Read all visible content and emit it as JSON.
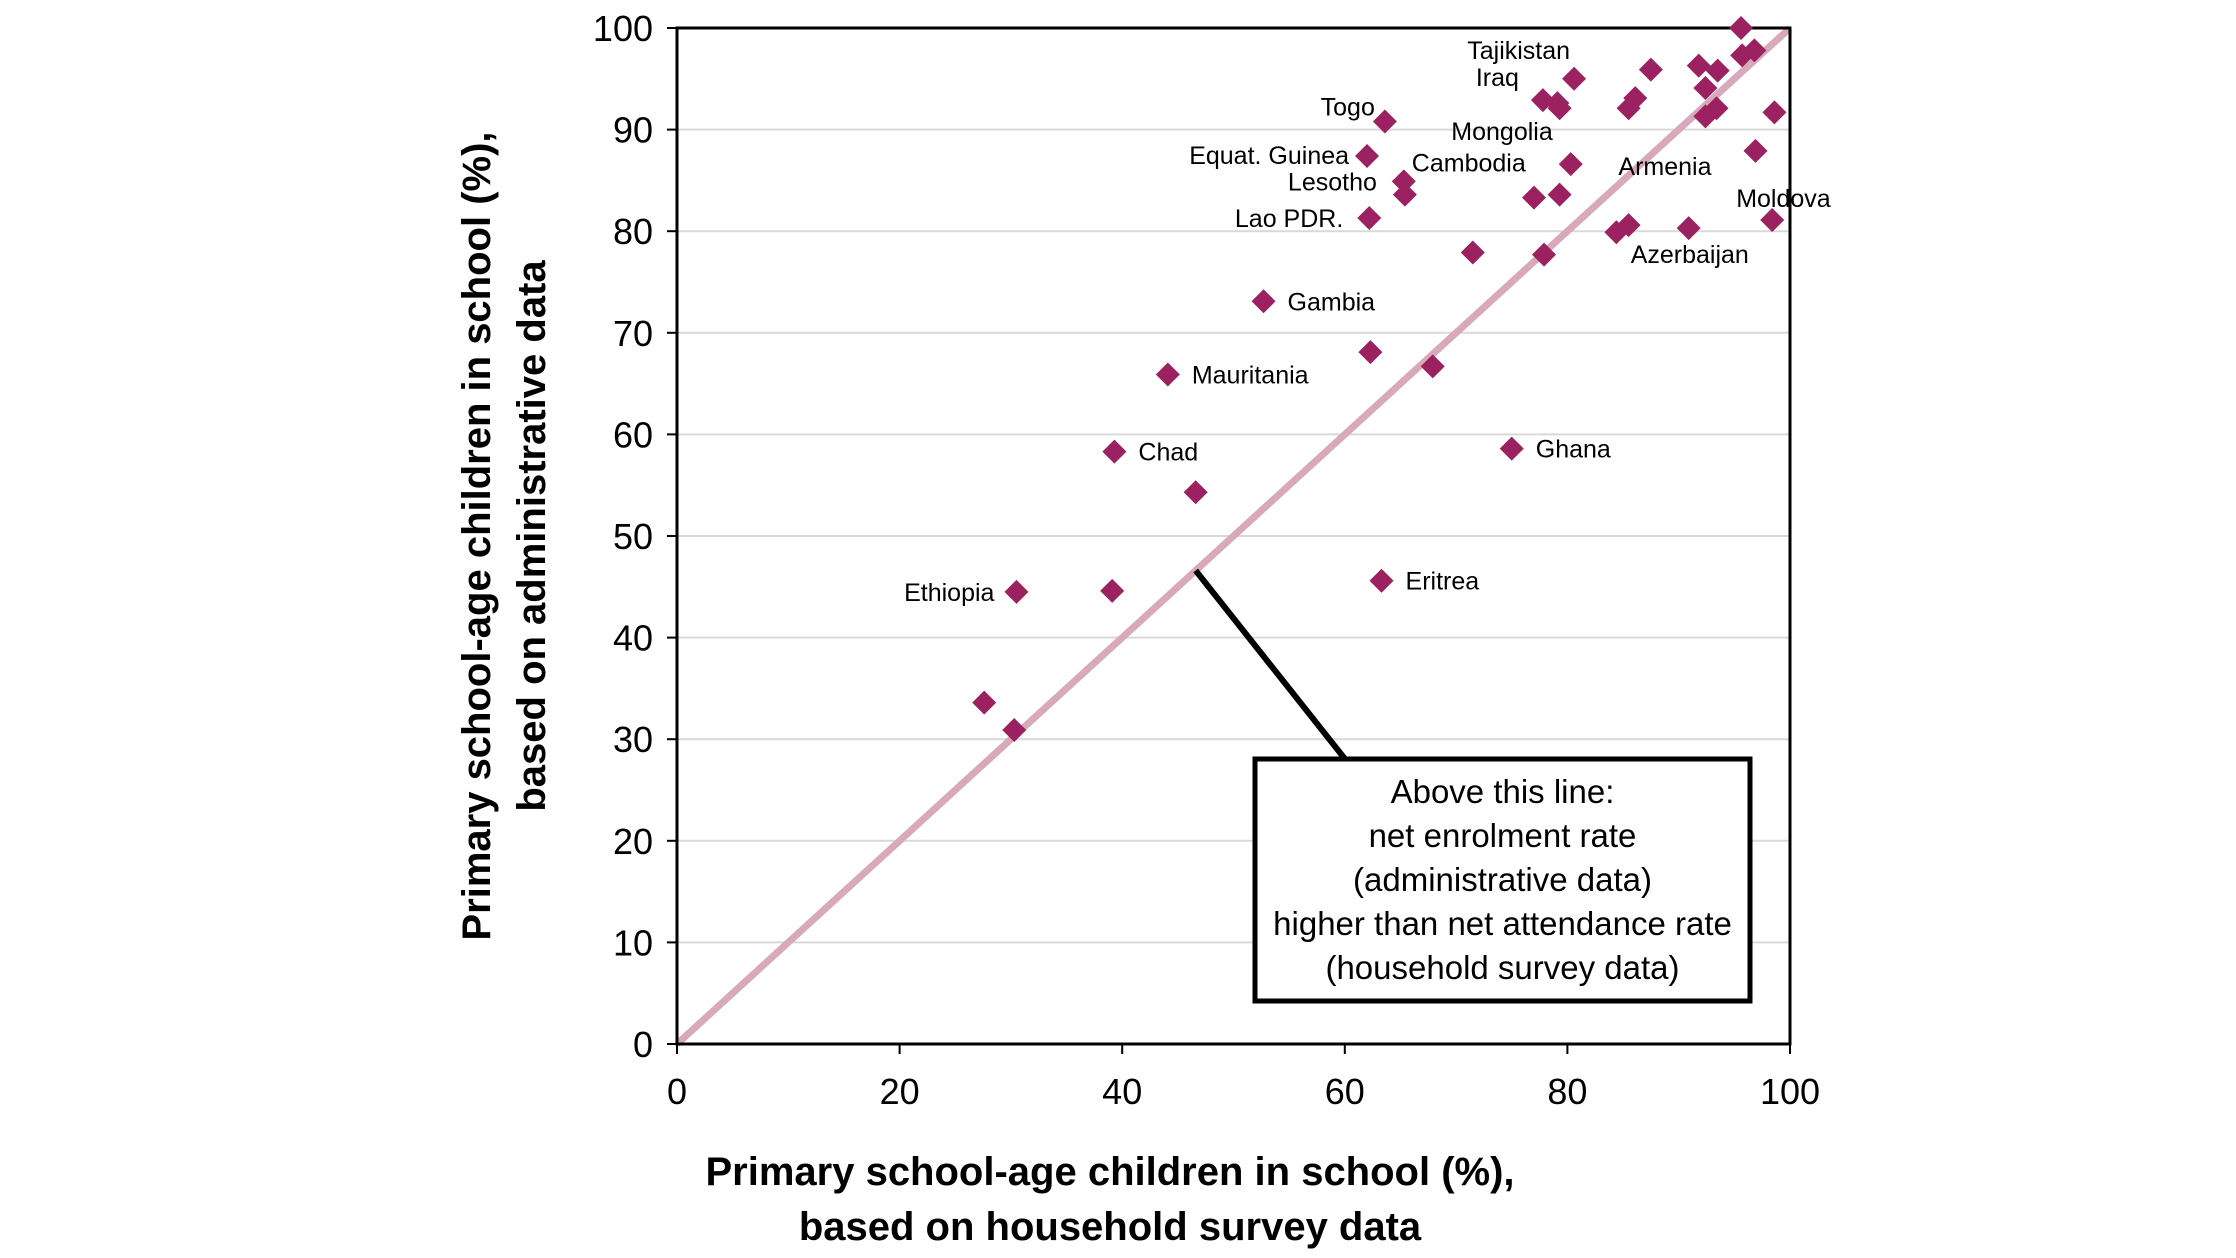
{
  "chart_data": {
    "type": "scatter",
    "title": "",
    "xlabel": [
      "Primary school-age children in school (%),",
      "based on household survey data"
    ],
    "ylabel": [
      "Primary school-age children in school (%),",
      "based on administrative data"
    ],
    "xlim": [
      0,
      100
    ],
    "ylim": [
      0,
      100
    ],
    "xticks": [
      "0",
      "20",
      "40",
      "60",
      "80",
      "100"
    ],
    "yticks": [
      "0",
      "10",
      "20",
      "30",
      "40",
      "50",
      "60",
      "70",
      "80",
      "90",
      "100"
    ],
    "grid": "horizontal",
    "colors": {
      "marker": "#9b2160",
      "reference_line": "#d8a9ba",
      "text": "#000000"
    },
    "reference_line": {
      "from": [
        0,
        0
      ],
      "to": [
        100,
        100
      ]
    },
    "annotation": {
      "lines": [
        "Above this line:",
        "net enrolment rate",
        "(administrative data)",
        "higher than net attendance rate",
        "(household survey data)"
      ],
      "points_to": [
        46.6,
        46.6
      ]
    },
    "points": [
      {
        "x": 95.6,
        "y": 100,
        "label": ""
      },
      {
        "x": 91.8,
        "y": 96.3,
        "label": ""
      },
      {
        "x": 93.5,
        "y": 95.8,
        "label": ""
      },
      {
        "x": 95.7,
        "y": 97.3,
        "label": ""
      },
      {
        "x": 96.8,
        "y": 97.8,
        "label": ""
      },
      {
        "x": 87.5,
        "y": 95.9,
        "label": ""
      },
      {
        "x": 80.6,
        "y": 95.0,
        "label": "Tajikistan"
      },
      {
        "x": 77.8,
        "y": 92.9,
        "label": "Iraq"
      },
      {
        "x": 79.1,
        "y": 92.6,
        "label": ""
      },
      {
        "x": 79.3,
        "y": 92.1,
        "label": ""
      },
      {
        "x": 86.1,
        "y": 93.1,
        "label": ""
      },
      {
        "x": 85.5,
        "y": 92.1,
        "label": ""
      },
      {
        "x": 92.4,
        "y": 94.1,
        "label": ""
      },
      {
        "x": 92.4,
        "y": 91.3,
        "label": ""
      },
      {
        "x": 93.4,
        "y": 92.1,
        "label": ""
      },
      {
        "x": 98.6,
        "y": 91.7,
        "label": ""
      },
      {
        "x": 63.6,
        "y": 90.8,
        "label": "Togo"
      },
      {
        "x": 62.0,
        "y": 87.4,
        "label": "Equat. Guinea"
      },
      {
        "x": 80.3,
        "y": 86.6,
        "label": "Mongolia"
      },
      {
        "x": 96.9,
        "y": 87.9,
        "label": "Armenia"
      },
      {
        "x": 65.3,
        "y": 84.9,
        "label": "Cambodia"
      },
      {
        "x": 65.4,
        "y": 83.6,
        "label": "Lesotho"
      },
      {
        "x": 77.0,
        "y": 83.3,
        "label": ""
      },
      {
        "x": 79.3,
        "y": 83.6,
        "label": ""
      },
      {
        "x": 62.2,
        "y": 81.3,
        "label": "Lao PDR."
      },
      {
        "x": 84.4,
        "y": 79.9,
        "label": ""
      },
      {
        "x": 85.5,
        "y": 80.6,
        "label": ""
      },
      {
        "x": 90.9,
        "y": 80.3,
        "label": "Azerbaijan"
      },
      {
        "x": 98.4,
        "y": 81.1,
        "label": "Moldova"
      },
      {
        "x": 71.5,
        "y": 77.9,
        "label": ""
      },
      {
        "x": 77.9,
        "y": 77.7,
        "label": ""
      },
      {
        "x": 52.7,
        "y": 73.1,
        "label": "Gambia"
      },
      {
        "x": 62.3,
        "y": 68.1,
        "label": ""
      },
      {
        "x": 44.1,
        "y": 65.9,
        "label": "Mauritania"
      },
      {
        "x": 67.9,
        "y": 66.7,
        "label": ""
      },
      {
        "x": 39.3,
        "y": 58.3,
        "label": "Chad"
      },
      {
        "x": 75.0,
        "y": 58.6,
        "label": "Ghana"
      },
      {
        "x": 46.6,
        "y": 54.3,
        "label": ""
      },
      {
        "x": 30.5,
        "y": 44.5,
        "label": "Ethiopia"
      },
      {
        "x": 39.1,
        "y": 44.6,
        "label": ""
      },
      {
        "x": 63.3,
        "y": 45.6,
        "label": "Eritrea"
      },
      {
        "x": 27.6,
        "y": 33.6,
        "label": ""
      },
      {
        "x": 30.3,
        "y": 30.9,
        "label": ""
      }
    ]
  }
}
